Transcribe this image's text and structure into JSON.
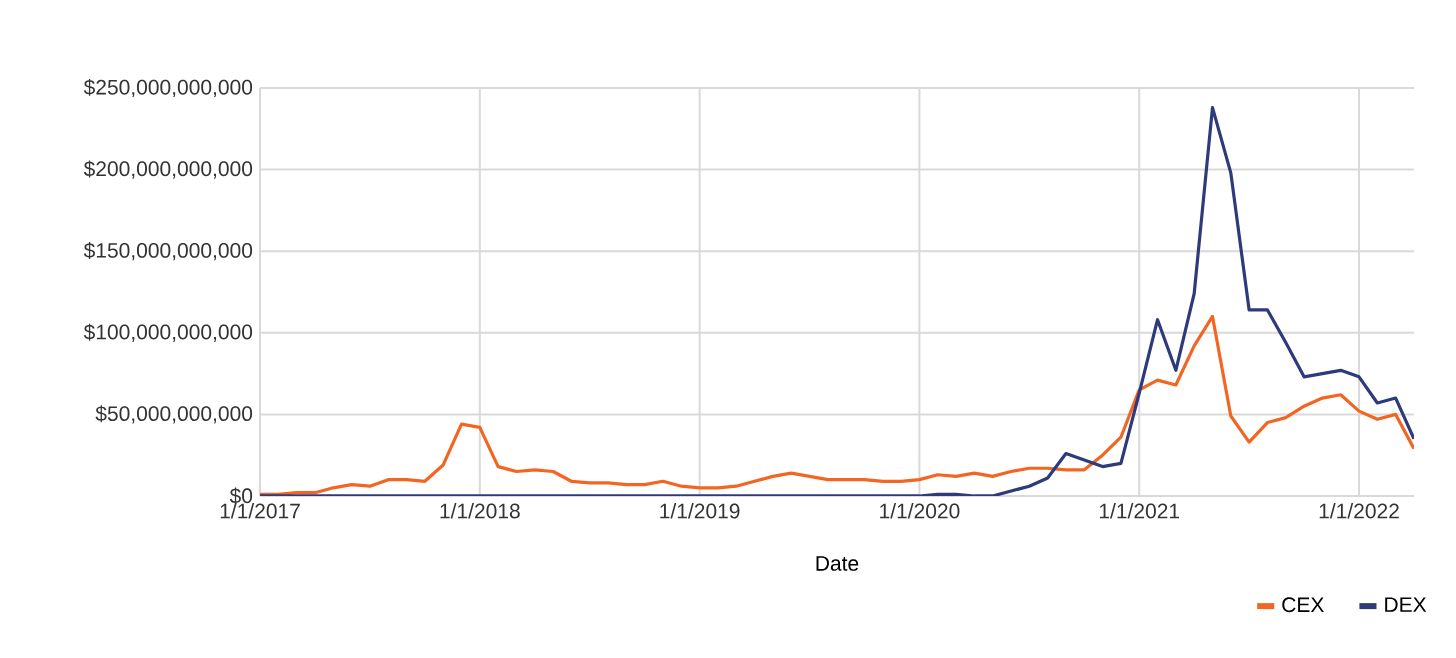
{
  "chart_data": {
    "type": "line",
    "xlabel": "Date",
    "x": [
      "2017-01",
      "2017-02",
      "2017-03",
      "2017-04",
      "2017-05",
      "2017-06",
      "2017-07",
      "2017-08",
      "2017-09",
      "2017-10",
      "2017-11",
      "2017-12",
      "2018-01",
      "2018-02",
      "2018-03",
      "2018-04",
      "2018-05",
      "2018-06",
      "2018-07",
      "2018-08",
      "2018-09",
      "2018-10",
      "2018-11",
      "2018-12",
      "2019-01",
      "2019-02",
      "2019-03",
      "2019-04",
      "2019-05",
      "2019-06",
      "2019-07",
      "2019-08",
      "2019-09",
      "2019-10",
      "2019-11",
      "2019-12",
      "2020-01",
      "2020-02",
      "2020-03",
      "2020-04",
      "2020-05",
      "2020-06",
      "2020-07",
      "2020-08",
      "2020-09",
      "2020-10",
      "2020-11",
      "2020-12",
      "2021-01",
      "2021-02",
      "2021-03",
      "2021-04",
      "2021-05",
      "2021-06",
      "2021-07",
      "2021-08",
      "2021-09",
      "2021-10",
      "2021-11",
      "2021-12",
      "2022-01",
      "2022-02",
      "2022-03",
      "2022-04"
    ],
    "series": [
      {
        "name": "CEX",
        "color": "#f26522",
        "values": [
          1000000000.0,
          1000000000.0,
          2000000000.0,
          2000000000.0,
          5000000000.0,
          7000000000.0,
          6000000000.0,
          10000000000.0,
          10000000000.0,
          9000000000.0,
          19000000000.0,
          44000000000.0,
          42000000000.0,
          18000000000.0,
          15000000000.0,
          16000000000.0,
          15000000000.0,
          9000000000.0,
          8000000000.0,
          8000000000.0,
          7000000000.0,
          7000000000.0,
          9000000000.0,
          6000000000.0,
          5000000000.0,
          5000000000.0,
          6000000000.0,
          9000000000.0,
          12000000000.0,
          14000000000.0,
          12000000000.0,
          10000000000.0,
          10000000000.0,
          10000000000.0,
          9000000000.0,
          9000000000.0,
          10000000000.0,
          13000000000.0,
          12000000000.0,
          14000000000.0,
          12000000000.0,
          15000000000.0,
          17000000000.0,
          17000000000.0,
          16000000000.0,
          16000000000.0,
          25000000000.0,
          36000000000.0,
          65000000000.0,
          71000000000.0,
          68000000000.0,
          92000000000.0,
          110000000000.0,
          49000000000.0,
          33000000000.0,
          45000000000.0,
          48000000000.0,
          55000000000.0,
          60000000000.0,
          62000000000.0,
          52000000000.0,
          47000000000.0,
          50000000000.0,
          29000000000.0
        ]
      },
      {
        "name": "DEX",
        "color": "#2e3a7a",
        "values": [
          0,
          0,
          0,
          0,
          0,
          0,
          0,
          0,
          0,
          0,
          0,
          0,
          0,
          0,
          0,
          0,
          0,
          0,
          0,
          0,
          0,
          0,
          0,
          0,
          0,
          0,
          0,
          0,
          0,
          0,
          0,
          0,
          0,
          0,
          0,
          0,
          0,
          1000000000.0,
          1000000000.0,
          0,
          0,
          3000000000.0,
          6000000000.0,
          11000000000.0,
          26000000000.0,
          22000000000.0,
          18000000000.0,
          20000000000.0,
          63000000000.0,
          108000000000.0,
          77000000000.0,
          124000000000.0,
          238000000000.0,
          198000000000.0,
          114000000000.0,
          114000000000.0,
          94000000000.0,
          73000000000.0,
          75000000000.0,
          77000000000.0,
          73000000000.0,
          57000000000.0,
          60000000000.0,
          35000000000.0
        ]
      }
    ],
    "xlim": [
      "2017-01",
      "2022-04"
    ],
    "xticks": [
      {
        "value": "2017-01",
        "label": "1/1/2017"
      },
      {
        "value": "2018-01",
        "label": "1/1/2018"
      },
      {
        "value": "2019-01",
        "label": "1/1/2019"
      },
      {
        "value": "2020-01",
        "label": "1/1/2020"
      },
      {
        "value": "2021-01",
        "label": "1/1/2021"
      },
      {
        "value": "2022-01",
        "label": "1/1/2022"
      }
    ],
    "ylim": [
      0,
      250000000000
    ],
    "yticks": [
      {
        "value": 0,
        "label": "$0"
      },
      {
        "value": 50000000000,
        "label": "$50,000,000,000"
      },
      {
        "value": 100000000000,
        "label": "$100,000,000,000"
      },
      {
        "value": 150000000000,
        "label": "$150,000,000,000"
      },
      {
        "value": 200000000000,
        "label": "$200,000,000,000"
      },
      {
        "value": 250000000000,
        "label": "$250,000,000,000"
      }
    ],
    "grid": true,
    "legend": "bottom right",
    "marker": "none",
    "line_style": "solid"
  }
}
